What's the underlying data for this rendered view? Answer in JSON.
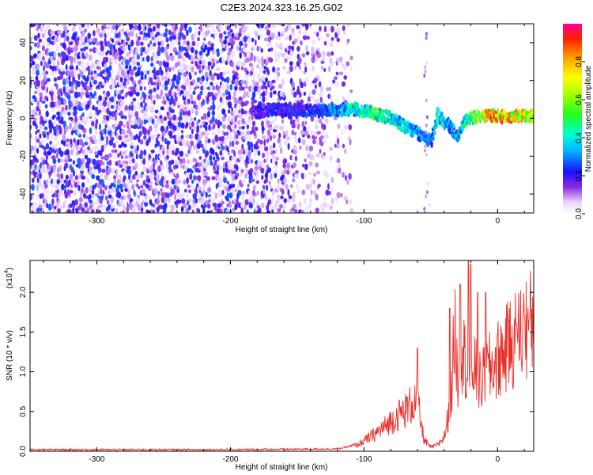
{
  "title": "C2E3.2024.323.16.25.G02",
  "chart_data": [
    {
      "type": "heatmap",
      "xlabel": "Height of straight line (km)",
      "ylabel": "Frequency (Hz)",
      "xlim": [
        -350,
        27
      ],
      "ylim": [
        -50,
        50
      ],
      "xticks": [
        -300,
        -200,
        -100,
        0
      ],
      "yticks": [
        -40,
        -20,
        0,
        20,
        40
      ],
      "colorbar": {
        "label": "Normalized spectral amplitude",
        "range": [
          0,
          1
        ],
        "ticks": [
          "0.0",
          "0.2",
          "0.4",
          "0.6",
          "0.8"
        ],
        "tick_values": [
          0,
          0.2,
          0.4,
          0.6,
          0.8
        ]
      },
      "ridge": {
        "x": [
          -185,
          -170,
          -150,
          -130,
          -110,
          -95,
          -80,
          -65,
          -55,
          -50,
          -45,
          -40,
          -35,
          -30,
          -25,
          -20,
          -15,
          -10,
          0,
          10,
          20,
          27
        ],
        "frequency": [
          3,
          5,
          4,
          4,
          5,
          3,
          0,
          -6,
          -10,
          -12,
          2,
          -2,
          -5,
          -10,
          -2,
          0,
          1,
          1,
          1,
          1,
          1,
          1
        ],
        "amplitude": [
          0.2,
          0.25,
          0.25,
          0.3,
          0.45,
          0.55,
          0.5,
          0.4,
          0.35,
          0.3,
          0.55,
          0.4,
          0.35,
          0.4,
          0.5,
          0.6,
          0.7,
          0.8,
          0.95,
          0.9,
          0.85,
          0.8
        ]
      },
      "grid": false,
      "noise_region": [
        -350,
        -110
      ]
    },
    {
      "type": "line",
      "xlabel": "Height of straight line (km)",
      "ylabel": "SNR (10 * v/v)",
      "y_multiplier": "(x10",
      "y_multiplier_exp": "4",
      "xlim": [
        -350,
        27
      ],
      "ylim": [
        0,
        2.4
      ],
      "xticks": [
        -300,
        -200,
        -100,
        0
      ],
      "yticks": [
        "0.0",
        "0.5",
        "1.0",
        "1.5",
        "2.0"
      ],
      "ytick_values": [
        0,
        0.5,
        1.0,
        1.5,
        2.0
      ],
      "color": "#e8302b",
      "series": [
        {
          "x": [
            -350,
            -200,
            -120,
            -105,
            -95,
            -85,
            -75,
            -70,
            -65,
            -60,
            -57,
            -55,
            -52,
            -50,
            -45,
            -40,
            -35,
            -32,
            -30,
            -28,
            -25,
            -22,
            -20,
            -18,
            -15,
            -12,
            -10,
            -8,
            -5,
            -2,
            0,
            5,
            10,
            15,
            20,
            25,
            27
          ],
          "y": [
            0.02,
            0.02,
            0.03,
            0.08,
            0.18,
            0.3,
            0.45,
            0.5,
            0.58,
            0.65,
            0.3,
            0.15,
            0.08,
            0.05,
            0.08,
            0.18,
            0.6,
            1.6,
            0.9,
            1.4,
            1.2,
            1.0,
            0.9,
            1.1,
            0.9,
            0.85,
            0.95,
            1.0,
            1.05,
            1.1,
            1.15,
            1.25,
            1.35,
            1.45,
            1.55,
            1.6,
            1.65
          ]
        }
      ],
      "spikes": [
        {
          "x": -60,
          "y": 1.3
        },
        {
          "x": -36,
          "y": 1.8
        },
        {
          "x": -28,
          "y": 2.1
        },
        {
          "x": -22,
          "y": 2.4
        },
        {
          "x": -20,
          "y": 2.35
        },
        {
          "x": -15,
          "y": 2.0
        },
        {
          "x": -9,
          "y": 2.0
        },
        {
          "x": 8,
          "y": 1.65
        },
        {
          "x": 14,
          "y": 1.6
        },
        {
          "x": 20,
          "y": 1.7
        }
      ],
      "grid": false
    }
  ]
}
